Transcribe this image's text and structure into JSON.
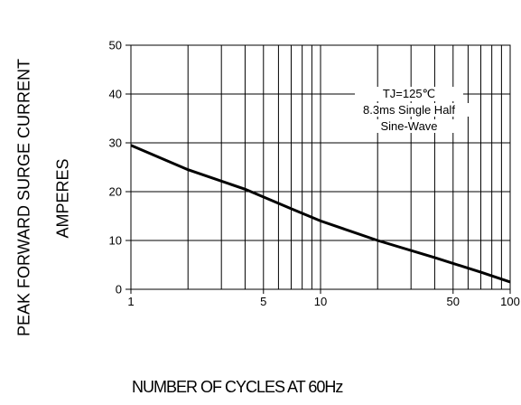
{
  "chart_data": {
    "type": "line",
    "title": "",
    "xlabel": "NUMBER OF CYCLES AT 60Hz",
    "ylabel": [
      "PEAK FORWARD SURGE CURRENT",
      "AMPERES"
    ],
    "xscale": "log",
    "xlim": [
      1,
      100
    ],
    "ylim": [
      0,
      50
    ],
    "xticks": [
      1,
      5,
      10,
      50,
      100
    ],
    "yticks": [
      0,
      10,
      20,
      30,
      40,
      50
    ],
    "grid": true,
    "annotation": [
      "TJ=125℃",
      "8.3ms Single Half",
      "Sine-Wave"
    ],
    "series": [
      {
        "x": [
          1,
          2,
          4,
          7,
          10,
          20,
          40,
          70,
          100
        ],
        "y": [
          29.5,
          24.5,
          20.5,
          16.5,
          14,
          10,
          6.5,
          3.5,
          1.5
        ]
      }
    ]
  }
}
